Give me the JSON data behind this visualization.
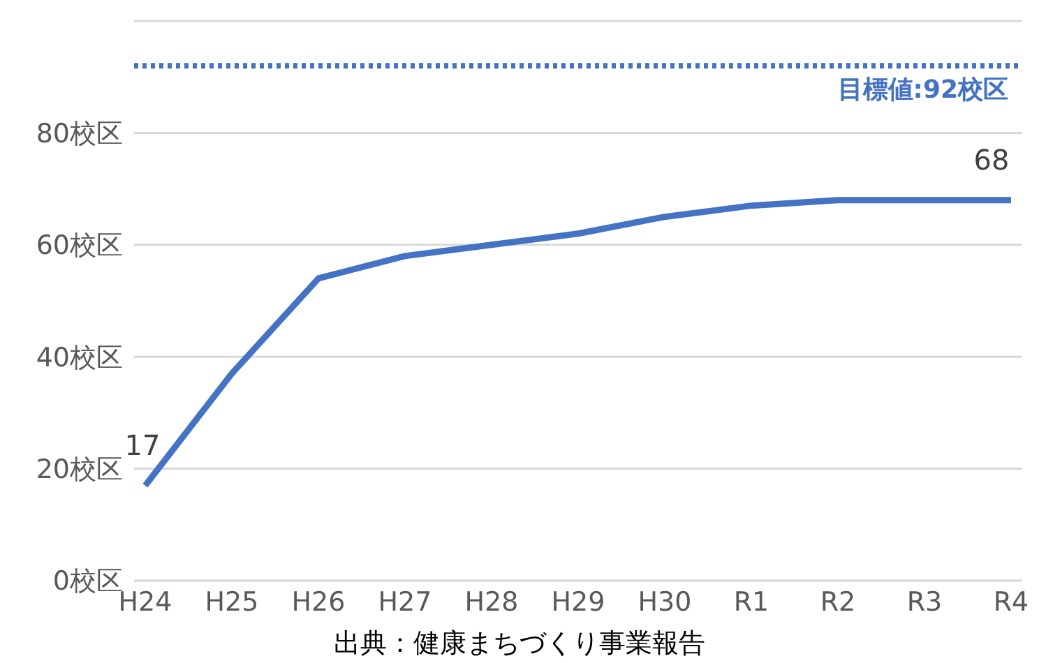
{
  "chart_data": {
    "type": "line",
    "categories": [
      "H24",
      "H25",
      "H26",
      "H27",
      "H28",
      "H29",
      "H30",
      "R1",
      "R2",
      "R3",
      "R4"
    ],
    "series": [
      {
        "color": "#4472c4",
        "values": [
          17,
          37,
          54,
          58,
          60,
          62,
          65,
          67,
          68,
          68,
          68
        ],
        "value_labels": [
          "17",
          null,
          null,
          null,
          null,
          null,
          null,
          null,
          null,
          null,
          "68"
        ]
      }
    ],
    "ylim": [
      0,
      100
    ],
    "yticks": [
      {
        "value": 0,
        "label": "0校区"
      },
      {
        "value": 20,
        "label": "20校区"
      },
      {
        "value": 40,
        "label": "40校区"
      },
      {
        "value": 60,
        "label": "60校区"
      },
      {
        "value": 80,
        "label": "80校区"
      },
      {
        "value": 100,
        "label": null
      }
    ],
    "grid": "y",
    "marker": "none",
    "line_style": "solid",
    "ref_lines": [
      {
        "axis": "y",
        "value": 92,
        "label": "目標値:92校区",
        "color": "#4472c4",
        "line_style": "dotted"
      }
    ],
    "annotations": [
      "出典：健康まちづくり事業報告"
    ]
  }
}
